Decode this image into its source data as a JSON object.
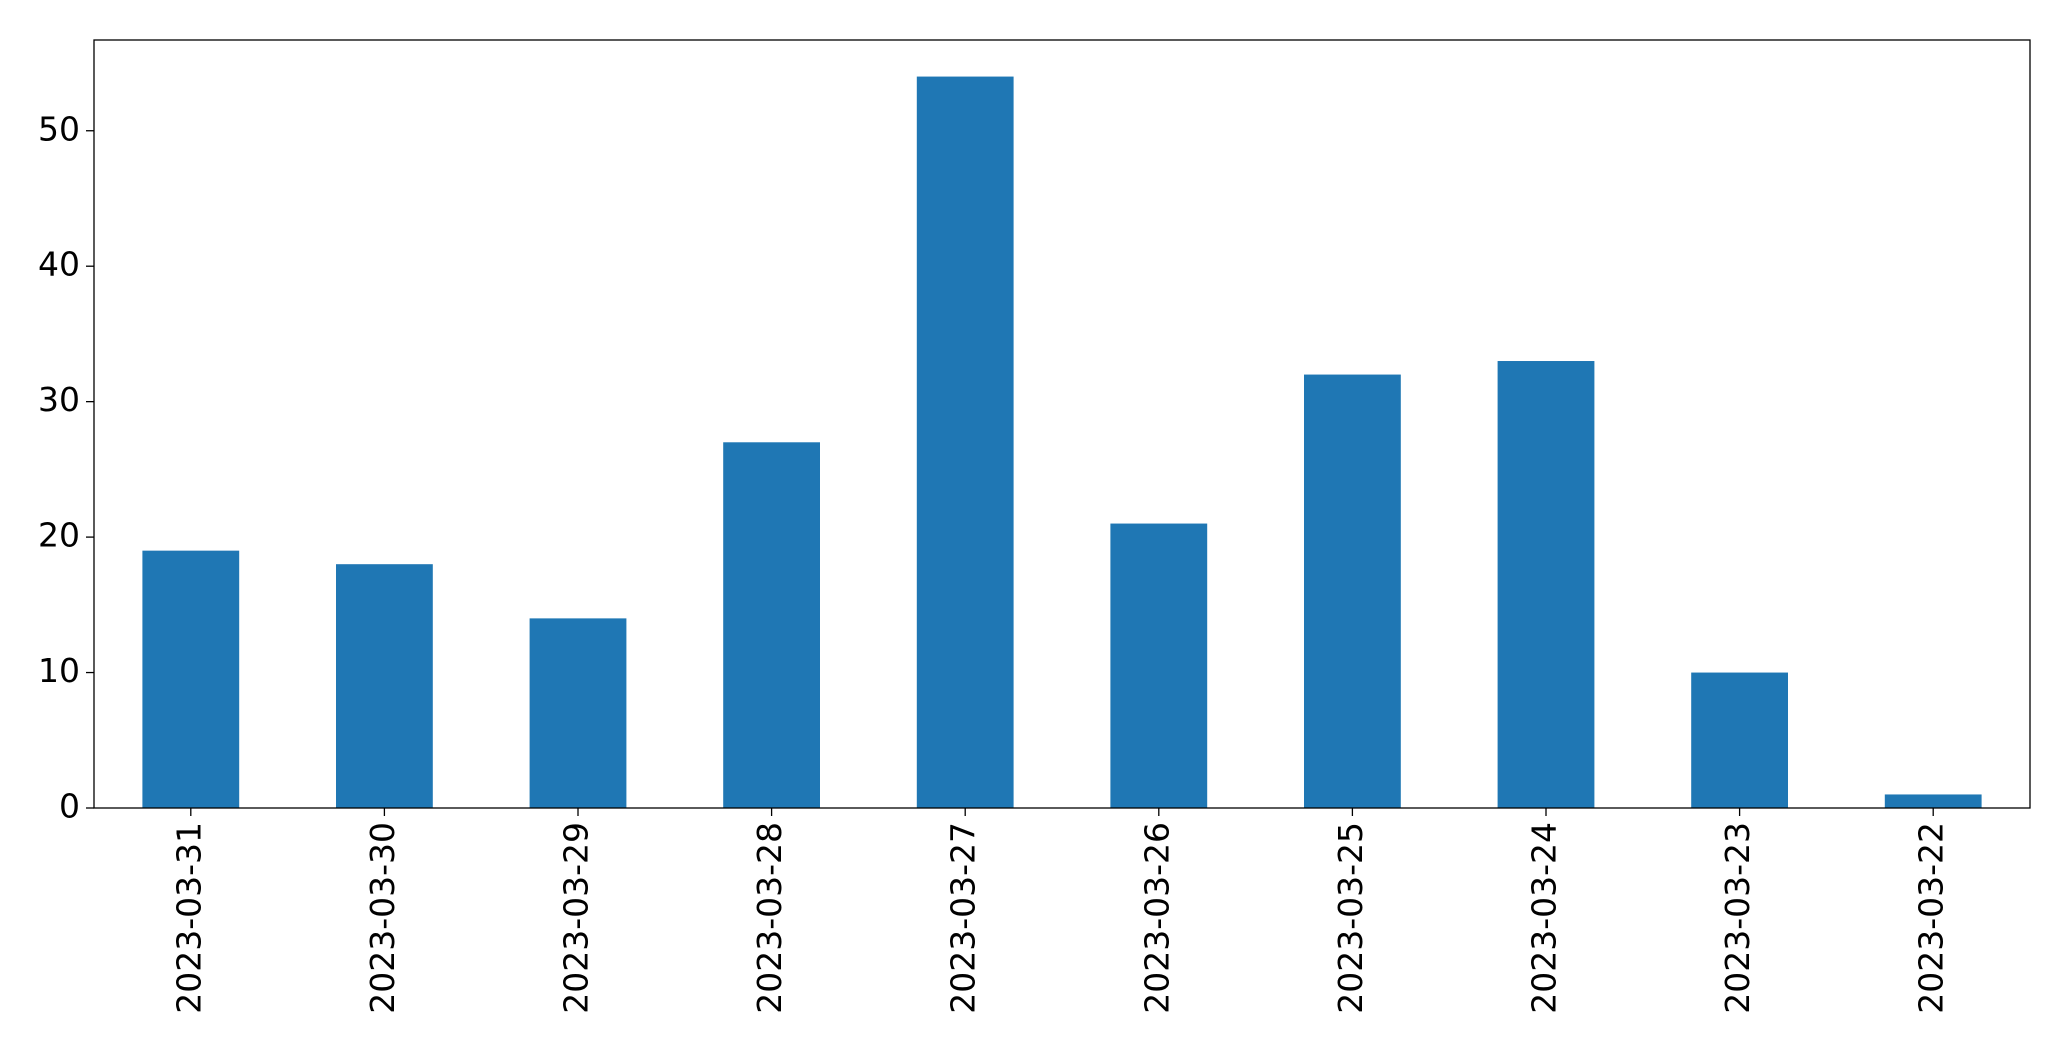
{
  "chart_data": {
    "type": "bar",
    "categories": [
      "2023-03-31",
      "2023-03-30",
      "2023-03-29",
      "2023-03-28",
      "2023-03-27",
      "2023-03-26",
      "2023-03-25",
      "2023-03-24",
      "2023-03-23",
      "2023-03-22"
    ],
    "values": [
      19,
      18,
      14,
      27,
      54,
      21,
      32,
      33,
      10,
      1
    ],
    "color": "#1f77b4",
    "ylim": [
      0,
      56.7
    ],
    "yticks": [
      0,
      10,
      20,
      30,
      40,
      50
    ],
    "grid": false
  }
}
